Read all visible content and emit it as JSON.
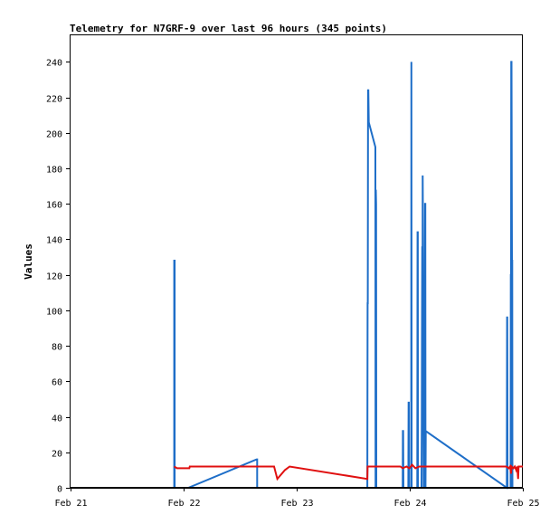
{
  "chart_data": {
    "type": "line",
    "title": "Telemetry for N7GRF-9 over last 96 hours (345 points)",
    "xlabel": "",
    "ylabel": "Values",
    "xlim": [
      0,
      96
    ],
    "ylim": [
      0,
      255
    ],
    "x_tick_values": [
      0,
      24,
      48,
      72,
      96
    ],
    "x_tick_labels": [
      "Feb 21",
      "Feb 22",
      "Feb 23",
      "Feb 24",
      "Feb 25"
    ],
    "y_ticks": [
      0,
      20,
      40,
      60,
      80,
      100,
      120,
      140,
      160,
      180,
      200,
      220,
      240
    ],
    "grid": false,
    "legend": "none",
    "colors": {
      "series_blue": "#1e6ec8",
      "series_red": "#e01010",
      "series_black": "#000000"
    },
    "series": [
      {
        "color": "#1e6ec8",
        "points": [
          [
            22.0,
            0
          ],
          [
            22.0,
            128
          ],
          [
            22.1,
            128
          ],
          [
            22.1,
            0
          ],
          [
            25.0,
            0
          ],
          [
            39.5,
            16
          ],
          [
            39.6,
            16
          ],
          [
            39.6,
            0
          ],
          [
            63.0,
            0
          ],
          [
            63.05,
            104
          ],
          [
            63.1,
            104
          ],
          [
            63.15,
            224
          ],
          [
            63.2,
            224
          ],
          [
            63.3,
            206
          ],
          [
            64.7,
            192
          ],
          [
            64.75,
            0
          ],
          [
            64.8,
            168
          ],
          [
            64.85,
            160
          ],
          [
            64.9,
            0
          ],
          [
            70.5,
            0
          ],
          [
            70.55,
            32
          ],
          [
            70.6,
            32
          ],
          [
            70.65,
            0
          ],
          [
            71.7,
            0
          ],
          [
            71.75,
            48
          ],
          [
            71.8,
            48
          ],
          [
            71.85,
            0
          ],
          [
            72.3,
            0
          ],
          [
            72.35,
            240
          ],
          [
            72.4,
            0
          ],
          [
            73.6,
            0
          ],
          [
            73.65,
            144
          ],
          [
            73.7,
            144
          ],
          [
            73.75,
            0
          ],
          [
            74.5,
            0
          ],
          [
            74.55,
            36
          ],
          [
            74.6,
            84
          ],
          [
            74.65,
            136
          ],
          [
            74.7,
            60
          ],
          [
            74.75,
            176
          ],
          [
            74.85,
            128
          ],
          [
            74.95,
            0
          ],
          [
            75.2,
            0
          ],
          [
            75.25,
            160
          ],
          [
            75.3,
            160
          ],
          [
            75.35,
            0
          ],
          [
            75.4,
            32
          ],
          [
            92.6,
            0
          ],
          [
            92.65,
            96
          ],
          [
            92.7,
            96
          ],
          [
            92.75,
            0
          ],
          [
            93.4,
            0
          ],
          [
            93.45,
            120
          ],
          [
            93.5,
            120
          ],
          [
            93.55,
            240
          ],
          [
            93.6,
            240
          ],
          [
            93.7,
            128
          ],
          [
            93.75,
            128
          ],
          [
            93.8,
            0
          ]
        ]
      },
      {
        "color": "#e01010",
        "points": [
          [
            22.0,
            12
          ],
          [
            22.6,
            11
          ],
          [
            25.2,
            11
          ],
          [
            25.3,
            12
          ],
          [
            40.0,
            12
          ],
          [
            43.2,
            12
          ],
          [
            43.9,
            5
          ],
          [
            45.5,
            10
          ],
          [
            46.5,
            12
          ],
          [
            63.0,
            5
          ],
          [
            63.05,
            12
          ],
          [
            70.0,
            12
          ],
          [
            70.5,
            11
          ],
          [
            71.3,
            12
          ],
          [
            71.9,
            11
          ],
          [
            72.5,
            13
          ],
          [
            73.2,
            11
          ],
          [
            74.0,
            12
          ],
          [
            75.0,
            12
          ],
          [
            92.5,
            12
          ],
          [
            93.0,
            11
          ],
          [
            93.3,
            12
          ],
          [
            93.5,
            8
          ],
          [
            93.6,
            12
          ],
          [
            94.0,
            11
          ],
          [
            94.3,
            12
          ],
          [
            94.6,
            10
          ],
          [
            94.8,
            12
          ],
          [
            95.0,
            5
          ],
          [
            95.1,
            12
          ],
          [
            96.0,
            12
          ]
        ]
      },
      {
        "color": "#000000",
        "points": [
          [
            0,
            0
          ],
          [
            96,
            0
          ]
        ]
      }
    ]
  }
}
